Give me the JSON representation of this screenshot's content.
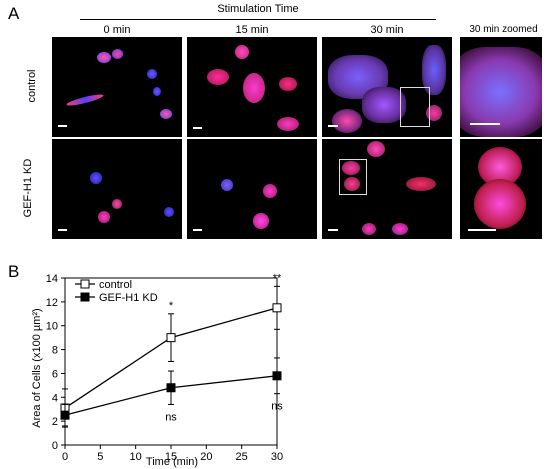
{
  "panel_a": {
    "label": "A",
    "group_header": "Stimulation Time",
    "columns": [
      "0 min",
      "15 min",
      "30 min",
      "30 min zoomed"
    ],
    "rows": [
      "control",
      "GEF-H1 KD"
    ]
  },
  "panel_b": {
    "label": "B"
  },
  "colors": {
    "blue_stain": "#3a34ff",
    "red_stain": "#ff2050",
    "magenta": "#ff3ad0"
  },
  "chart_data": {
    "type": "line",
    "xlabel": "Time (min)",
    "ylabel": "Area of Cells (x100 µm²)",
    "x": [
      0,
      15,
      30
    ],
    "xlim": [
      0,
      30
    ],
    "ylim": [
      0,
      14
    ],
    "xticks": [
      0,
      5,
      10,
      15,
      20,
      25,
      30
    ],
    "yticks": [
      0,
      2,
      4,
      6,
      8,
      10,
      12,
      14
    ],
    "legend_position": "top-left",
    "series": [
      {
        "name": "control",
        "marker": "open-square",
        "values": [
          3.1,
          9.0,
          11.5
        ],
        "errors": [
          1.6,
          2.0,
          1.8
        ]
      },
      {
        "name": "GEF-H1 KD",
        "marker": "filled-square",
        "values": [
          2.5,
          4.8,
          5.8
        ],
        "errors": [
          0.9,
          1.4,
          1.5
        ]
      }
    ],
    "annotations": [
      {
        "x": 15,
        "text": "*",
        "position": "above"
      },
      {
        "x": 30,
        "text": "**",
        "position": "above"
      },
      {
        "x": 15,
        "text": "ns",
        "position": "below"
      },
      {
        "x": 30,
        "text": "ns",
        "position": "below"
      }
    ]
  }
}
